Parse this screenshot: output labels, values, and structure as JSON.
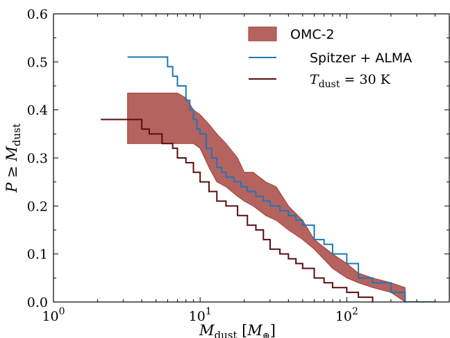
{
  "chart_data": {
    "type": "line",
    "xscale": "log",
    "xlim": [
      1,
      500
    ],
    "ylim": [
      0.0,
      0.6
    ],
    "xlabel": {
      "main": "M",
      "sub": "dust",
      "unit_open": " [",
      "unit_main": "M",
      "unit_sub": "⊕",
      "unit_close": "]"
    },
    "ylabel": {
      "main": "P ≥ M",
      "sub": "dust"
    },
    "x_ticks": [
      {
        "value": 1,
        "base": "10",
        "exp": "0"
      },
      {
        "value": 10,
        "base": "10",
        "exp": "1"
      },
      {
        "value": 100,
        "base": "10",
        "exp": "2"
      }
    ],
    "y_ticks": [
      {
        "value": 0.0,
        "label": "0.0"
      },
      {
        "value": 0.1,
        "label": "0.1"
      },
      {
        "value": 0.2,
        "label": "0.2"
      },
      {
        "value": 0.3,
        "label": "0.3"
      },
      {
        "value": 0.4,
        "label": "0.4"
      },
      {
        "value": 0.5,
        "label": "0.5"
      },
      {
        "value": 0.6,
        "label": "0.6"
      }
    ],
    "legend": {
      "position": "top-right",
      "entries": [
        {
          "label": "OMC-2",
          "kind": "band"
        },
        {
          "label": "Spitzer + ALMA",
          "kind": "line"
        },
        {
          "label_main": "T",
          "label_sub": "dust",
          "label_rest": " = 30 K",
          "kind": "line"
        }
      ]
    },
    "colors": {
      "band_fill": "#b5635f",
      "band_edge": "#a13a36",
      "spitzer": "#1f77b4",
      "tdust": "#5a0c0c"
    },
    "series": [
      {
        "name": "OMC-2",
        "kind": "band",
        "x": [
          3.2,
          7.0,
          8.0,
          9.0,
          10.0,
          11.5,
          13.0,
          15.0,
          18.0,
          20.0,
          23.0,
          28.0,
          33.0,
          40.0,
          50.0,
          60.0,
          80.0,
          100.0,
          120.0,
          150.0,
          200.0,
          250.0
        ],
        "lower": [
          0.33,
          0.33,
          0.33,
          0.33,
          0.32,
          0.28,
          0.25,
          0.24,
          0.22,
          0.21,
          0.2,
          0.18,
          0.17,
          0.15,
          0.13,
          0.11,
          0.07,
          0.05,
          0.04,
          0.03,
          0.02,
          0.0
        ],
        "upper": [
          0.435,
          0.435,
          0.425,
          0.4,
          0.39,
          0.37,
          0.35,
          0.33,
          0.3,
          0.27,
          0.27,
          0.25,
          0.24,
          0.2,
          0.17,
          0.13,
          0.1,
          0.08,
          0.06,
          0.05,
          0.04,
          0.03
        ]
      },
      {
        "name": "Spitzer + ALMA",
        "kind": "step",
        "x": [
          3.2,
          6.0,
          6.5,
          7.0,
          8.0,
          8.5,
          9.0,
          9.5,
          10.0,
          11.0,
          12.0,
          13.0,
          14.0,
          15.0,
          17.0,
          19.0,
          21.0,
          24.0,
          27.0,
          30.0,
          35.0,
          40.0,
          45.0,
          50.0,
          60.0,
          70.0,
          80.0,
          100.0,
          120.0,
          150.0,
          200.0,
          250.0,
          400.0
        ],
        "y": [
          0.51,
          0.49,
          0.47,
          0.45,
          0.42,
          0.4,
          0.38,
          0.36,
          0.35,
          0.32,
          0.3,
          0.28,
          0.27,
          0.26,
          0.25,
          0.24,
          0.23,
          0.22,
          0.21,
          0.2,
          0.19,
          0.18,
          0.17,
          0.16,
          0.13,
          0.12,
          0.1,
          0.08,
          0.05,
          0.04,
          0.02,
          0.0,
          0.0
        ]
      },
      {
        "name_main": "T",
        "name_sub": "dust",
        "name_rest": " = 30 K",
        "kind": "step",
        "x": [
          2.1,
          4.0,
          4.5,
          5.5,
          6.5,
          7.0,
          8.0,
          9.0,
          10.0,
          11.5,
          13.0,
          15.0,
          18.0,
          21.0,
          24.0,
          27.0,
          30.0,
          35.0,
          40.0,
          45.0,
          50.0,
          60.0,
          70.0,
          80.0,
          100.0,
          120.0,
          150.0
        ],
        "y": [
          0.38,
          0.36,
          0.35,
          0.33,
          0.32,
          0.3,
          0.29,
          0.27,
          0.25,
          0.23,
          0.21,
          0.2,
          0.18,
          0.16,
          0.15,
          0.13,
          0.11,
          0.1,
          0.09,
          0.08,
          0.07,
          0.05,
          0.04,
          0.03,
          0.02,
          0.01,
          0.0
        ]
      }
    ]
  }
}
